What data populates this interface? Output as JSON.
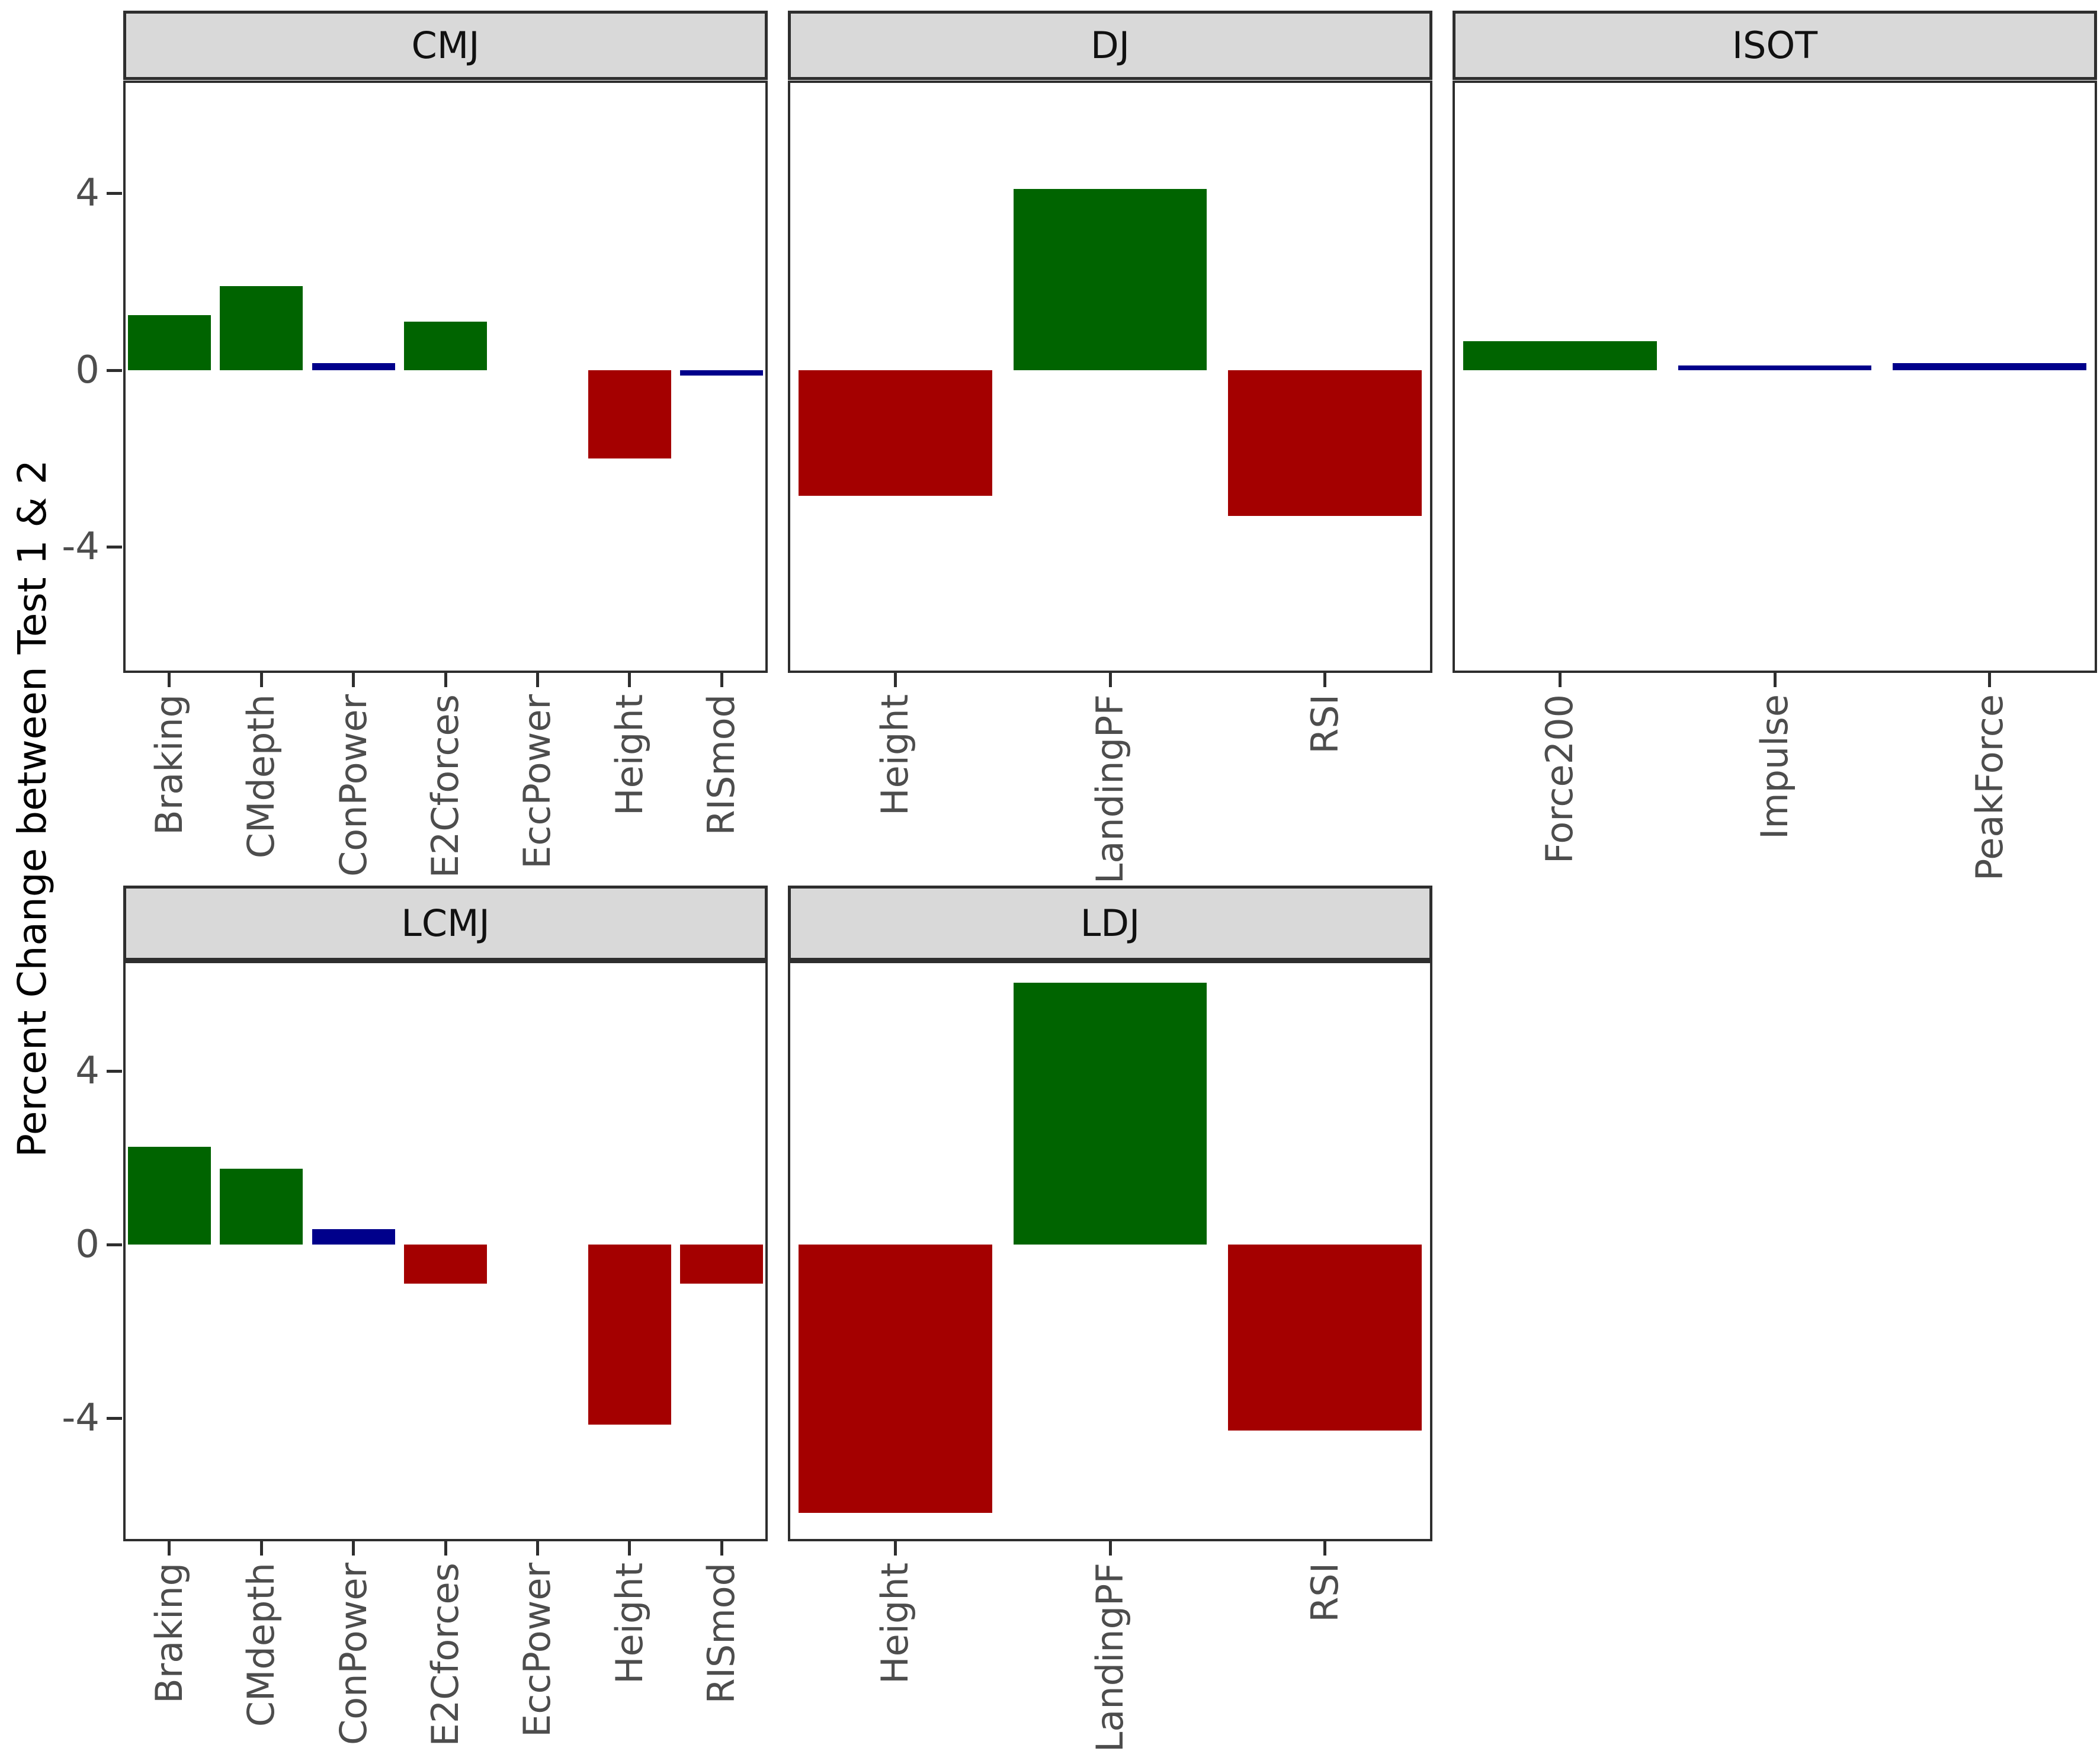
{
  "figure": {
    "ylabel": "Percent Change between Test 1 & 2",
    "ylim": [
      -6.85,
      6.55
    ],
    "yticks": [
      {
        "label": "4",
        "value": 4
      },
      {
        "label": "0",
        "value": 0
      },
      {
        "label": "-4",
        "value": -4
      }
    ],
    "grid": "off",
    "legend": "none",
    "colors": {
      "green": "#006400",
      "red": "#A40000",
      "navy": "#00008B"
    },
    "strip_background": "#D9D9D9",
    "panel_border_color": "#2E2E2E",
    "axis_text_color": "#4D4D4D"
  },
  "chart_data": [
    {
      "type": "bar",
      "facet": "CMJ",
      "categories": [
        "Braking",
        "CMdepth",
        "ConPower",
        "E2Cforces",
        "EccPower",
        "Height",
        "RISmod"
      ],
      "values": [
        1.25,
        1.9,
        0.16,
        1.1,
        0,
        -2.0,
        -0.12
      ],
      "bar_colors": [
        "green",
        "green",
        "navy",
        "green",
        "none",
        "red",
        "navy"
      ]
    },
    {
      "type": "bar",
      "facet": "DJ",
      "categories": [
        "Height",
        "LandingPF",
        "RSI"
      ],
      "values": [
        -2.85,
        4.1,
        -3.3
      ],
      "bar_colors": [
        "red",
        "green",
        "red"
      ]
    },
    {
      "type": "bar",
      "facet": "ISOT",
      "categories": [
        "Force200",
        "Impulse",
        "PeakForce"
      ],
      "values": [
        0.65,
        0.1,
        0.16
      ],
      "bar_colors": [
        "green",
        "navy",
        "navy"
      ]
    },
    {
      "type": "bar",
      "facet": "LCMJ",
      "categories": [
        "Braking",
        "CMdepth",
        "ConPower",
        "E2Cforces",
        "EccPower",
        "Height",
        "RISmod"
      ],
      "values": [
        2.25,
        1.75,
        0.35,
        -0.9,
        0,
        -4.15,
        -0.9
      ],
      "bar_colors": [
        "green",
        "green",
        "navy",
        "red",
        "none",
        "red",
        "red"
      ]
    },
    {
      "type": "bar",
      "facet": "LDJ",
      "categories": [
        "Height",
        "LandingPF",
        "RSI"
      ],
      "values": [
        -6.2,
        6.05,
        -4.3
      ],
      "bar_colors": [
        "red",
        "green",
        "red"
      ]
    }
  ]
}
